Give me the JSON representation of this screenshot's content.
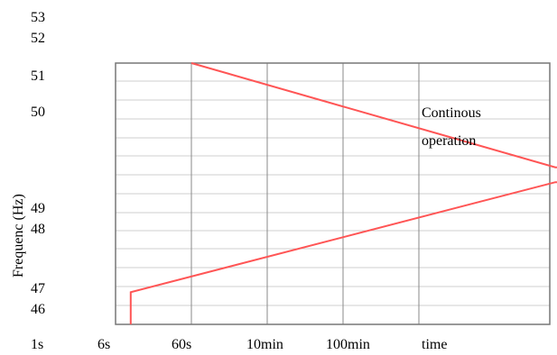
{
  "chart_data": {
    "type": "line",
    "ylabel": "Frequenc (Hz)",
    "x_tick_labels": [
      "1s",
      "6s",
      "60s",
      "10min",
      "100min",
      "time"
    ],
    "y_tick_labels": [
      "53",
      "52",
      "51",
      "50",
      "49",
      "48",
      "47",
      "46"
    ],
    "annotation": {
      "line1": "Continous",
      "line2": "operation"
    },
    "grid": true,
    "series": [
      {
        "color": "#ff5555",
        "points": [
          [
            1.0,
            51.0
          ],
          [
            5.8,
            49.1
          ],
          [
            6.15,
            49.1
          ]
        ]
      },
      {
        "color": "#ff5555",
        "points": [
          [
            0.2,
            46.0
          ],
          [
            0.2,
            46.85
          ],
          [
            5.8,
            48.9
          ],
          [
            6.15,
            48.9
          ]
        ]
      }
    ]
  }
}
